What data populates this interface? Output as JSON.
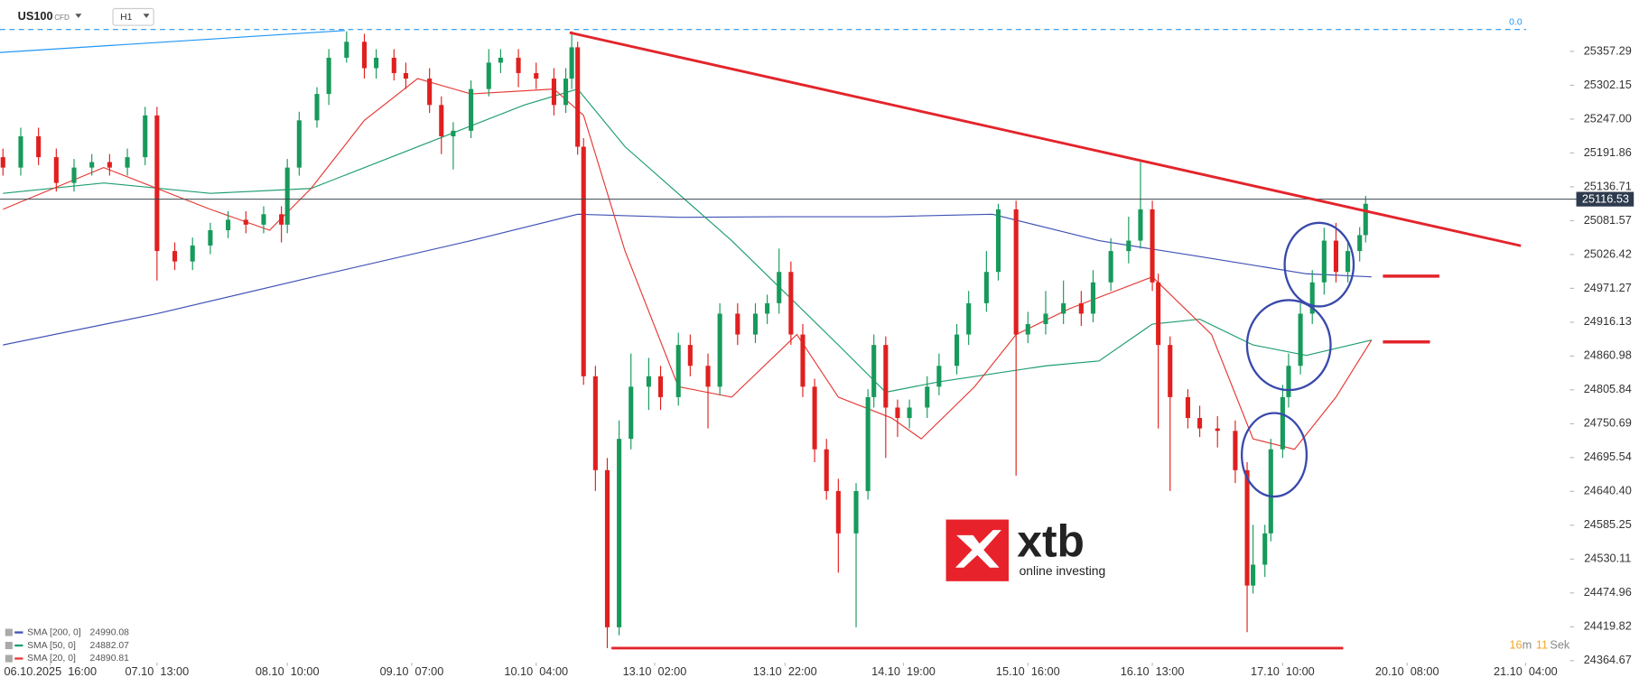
{
  "chart_data": {
    "type": "candlestick",
    "symbol": "US100",
    "instrument_type": "CFD",
    "timeframe": "H1",
    "x": [
      -8,
      -5,
      -2,
      1,
      4,
      7,
      10,
      13,
      16,
      18,
      21,
      24,
      27,
      30,
      33,
      36,
      39,
      40,
      42,
      45,
      47,
      50,
      53,
      55,
      58,
      60,
      64,
      66,
      68,
      71,
      74,
      76,
      79,
      82,
      85,
      87,
      88,
      89,
      90,
      92,
      94,
      96,
      98,
      101,
      103,
      106,
      108,
      111,
      113,
      116,
      119,
      121,
      123,
      125,
      127,
      129,
      131,
      133,
      136,
      138,
      139,
      141,
      143,
      145,
      148,
      150,
      153,
      155,
      158,
      160,
      163,
      165,
      168,
      171,
      174,
      176,
      179,
      182,
      184,
      186,
      187,
      189,
      192,
      194,
      197,
      200,
      202,
      203,
      205,
      206,
      208,
      209,
      211,
      213,
      215,
      217,
      219,
      221,
      222
    ],
    "open": [
      25185,
      25168,
      25219,
      25185,
      25143,
      25168,
      25177,
      25168,
      25185,
      25253,
      25032,
      25015,
      25041,
      25066,
      25083,
      25075,
      25092,
      25075,
      25168,
      25245,
      25288,
      25347,
      25373,
      25330,
      25347,
      25322,
      25313,
      25270,
      25219,
      25228,
      25296,
      25339,
      25347,
      25322,
      25313,
      25270,
      25313,
      25364,
      25202,
      24828,
      24675,
      24419,
      24726,
      24811,
      24828,
      24794,
      24879,
      24845,
      24811,
      24930,
      24896,
      24930,
      24947,
      24998,
      24896,
      24811,
      24709,
      24641,
      24572,
      24641,
      24794,
      24879,
      24777,
      24760,
      24777,
      24811,
      24845,
      24896,
      24947,
      24998,
      25100,
      24896,
      24913,
      24930,
      24947,
      24930,
      24981,
      25032,
      25049,
      25100,
      24981,
      24879,
      24794,
      24760,
      24743,
      24739,
      24675,
      24487,
      24521,
      24572,
      24709,
      24794,
      24845,
      24930,
      24981,
      25049,
      24998,
      25032,
      25058
    ],
    "high": [
      25199,
      25233,
      25233,
      25199,
      25182,
      25190,
      25190,
      25199,
      25267,
      25267,
      25046,
      25054,
      25078,
      25097,
      25097,
      25105,
      25105,
      25182,
      25259,
      25299,
      25361,
      25390,
      25386,
      25361,
      25361,
      25339,
      25330,
      25284,
      25242,
      25310,
      25361,
      25361,
      25361,
      25339,
      25330,
      25330,
      25390,
      25373,
      25216,
      24845,
      24695,
      24756,
      24865,
      24858,
      24845,
      24899,
      24896,
      24865,
      24947,
      24947,
      24947,
      24961,
      25036,
      25015,
      24913,
      24824,
      24726,
      24661,
      24654,
      24807,
      24896,
      24893,
      24790,
      24790,
      24828,
      24865,
      24913,
      24967,
      25032,
      25109,
      25114,
      24933,
      24967,
      24984,
      24967,
      25001,
      25053,
      25088,
      25177,
      25114,
      24995,
      24893,
      24807,
      24780,
      24763,
      24756,
      24688,
      24586,
      24586,
      24726,
      24814,
      24865,
      24947,
      25001,
      25070,
      25078,
      25046,
      25071,
      25122
    ],
    "low": [
      25155,
      25155,
      25172,
      25129,
      25129,
      25155,
      25155,
      25155,
      25172,
      24984,
      25001,
      25001,
      25027,
      25053,
      25061,
      25061,
      25046,
      25061,
      25155,
      25233,
      25270,
      25339,
      25313,
      25313,
      25310,
      25296,
      25257,
      25190,
      25165,
      25216,
      25284,
      25322,
      25299,
      25296,
      25253,
      25257,
      25296,
      25189,
      24814,
      24641,
      24385,
      24406,
      24709,
      24773,
      24773,
      24780,
      24828,
      24743,
      24797,
      24879,
      24882,
      24913,
      24930,
      24879,
      24794,
      24688,
      24627,
      24508,
      24419,
      24627,
      24777,
      24695,
      24729,
      24743,
      24760,
      24797,
      24831,
      24879,
      24933,
      24984,
      24666,
      24882,
      24896,
      24913,
      24910,
      24916,
      24967,
      25012,
      25036,
      24967,
      24743,
      24641,
      24743,
      24729,
      24712,
      24654,
      24411,
      24474,
      24501,
      24559,
      24695,
      24777,
      24831,
      24913,
      24961,
      24981,
      24981,
      25015,
      25046
    ],
    "close": [
      25168,
      25219,
      25185,
      25143,
      25168,
      25177,
      25168,
      25185,
      25253,
      25032,
      25015,
      25041,
      25066,
      25083,
      25075,
      25092,
      25075,
      25168,
      25245,
      25288,
      25347,
      25373,
      25330,
      25347,
      25322,
      25313,
      25270,
      25219,
      25228,
      25296,
      25339,
      25347,
      25322,
      25313,
      25270,
      25313,
      25364,
      25202,
      24828,
      24675,
      24419,
      24726,
      24811,
      24828,
      24794,
      24879,
      24845,
      24811,
      24930,
      24896,
      24930,
      24947,
      24998,
      24896,
      24811,
      24709,
      24641,
      24572,
      24641,
      24794,
      24879,
      24777,
      24760,
      24777,
      24811,
      24845,
      24896,
      24947,
      24998,
      25100,
      24896,
      24913,
      24930,
      24947,
      24930,
      24981,
      25032,
      25049,
      25100,
      24981,
      24879,
      24794,
      24760,
      24743,
      24739,
      24675,
      24487,
      24521,
      24572,
      24709,
      24794,
      24845,
      24930,
      24981,
      25049,
      24998,
      25032,
      25058,
      25109
    ],
    "colors": {
      "up": "#179a5b",
      "down": "#e0201f"
    },
    "xlim": [
      -8.5,
      256.5
    ],
    "ylim": [
      24334,
      25440.7
    ],
    "xticks": [
      {
        "value": 0,
        "label": "06.10.2025  16:00"
      },
      {
        "value": 18,
        "label": "07.10  13:00"
      },
      {
        "value": 40,
        "label": "08.10  10:00"
      },
      {
        "value": 61,
        "label": "09.10  07:00"
      },
      {
        "value": 82,
        "label": "10.10  04:00"
      },
      {
        "value": 102,
        "label": "13.10  02:00"
      },
      {
        "value": 124,
        "label": "13.10  22:00"
      },
      {
        "value": 144,
        "label": "14.10  19:00"
      },
      {
        "value": 165,
        "label": "15.10  16:00"
      },
      {
        "value": 186,
        "label": "16.10  13:00"
      },
      {
        "value": 208,
        "label": "17.10  10:00"
      },
      {
        "value": 229,
        "label": "20.10  08:00"
      },
      {
        "value": 249,
        "label": "21.10  04:00"
      }
    ],
    "yticks": [
      25357.29,
      25302.15,
      {
        "value": 25247,
        "label": "25247.00"
      },
      25191.86,
      25136.71,
      25081.57,
      25026.42,
      24971.27,
      24916.13,
      24860.98,
      24805.84,
      24750.69,
      24695.54,
      {
        "value": 24640.4,
        "label": "24640.40"
      },
      24585.25,
      24530.11,
      24474.96,
      24419.82,
      24364.67
    ],
    "last_price": 25116.53,
    "level": {
      "value": 0,
      "label": "0.0"
    },
    "indicators": [
      {
        "label": "SMA [200, 0]",
        "last": 24990.08,
        "color": "#3f51b5",
        "x": [
          -8,
          18,
          44,
          71,
          89,
          106,
          124,
          141,
          159,
          177,
          194,
          212,
          223
        ],
        "values": [
          24879,
          24930,
          24989,
          25049,
          25092,
          25087,
          25088,
          25088,
          25092,
          25049,
          25023,
          24995,
          24990
        ]
      },
      {
        "label": "SMA [50, 0]",
        "last": 24882.07,
        "color": "#1e9e6e",
        "x": [
          -8,
          9,
          27,
          44,
          62,
          80,
          89,
          97,
          115,
          133,
          141,
          150,
          168,
          177,
          186,
          194,
          203,
          212,
          223
        ],
        "values": [
          25126,
          25143,
          25126,
          25134,
          25202,
          25270,
          25296,
          25202,
          25049,
          24879,
          24802,
          24819,
          24845,
          24853,
          24913,
          24921,
          24879,
          24862,
          24887
        ]
      },
      {
        "label": "SMA [20, 0]",
        "last": 24890.81,
        "color": "#e53935",
        "x": [
          -8,
          9,
          27,
          37,
          44,
          53,
          62,
          71,
          85,
          90,
          97,
          106,
          115,
          126,
          133,
          142,
          147,
          156,
          163,
          172,
          186,
          196,
          203,
          210,
          217,
          223
        ],
        "values": [
          25100,
          25168,
          25100,
          25066,
          25134,
          25245,
          25313,
          25288,
          25296,
          25253,
          25032,
          24811,
          24794,
          24896,
          24794,
          24760,
          24726,
          24811,
          24896,
          24938,
          24990,
          24896,
          24726,
          24709,
          24794,
          24887
        ]
      }
    ],
    "timer": {
      "minutes": "16",
      "minutes_unit": "m",
      "seconds": "11",
      "seconds_unit": "Sek"
    }
  },
  "logo": {
    "name": "xtb",
    "tagline": "online investing"
  }
}
